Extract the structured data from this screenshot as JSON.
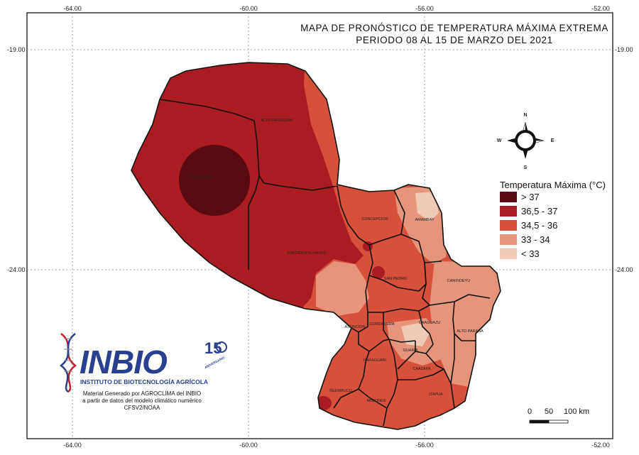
{
  "title": {
    "line1": "MAPA DE PRONÓSTICO DE TEMPERATURA MÁXIMA EXTREMA",
    "line2": "PERIODO  08 AL 15 DE MARZO DEL 2021"
  },
  "coords": {
    "lon": [
      "-64.00",
      "-60.00",
      "-56.00",
      "-52.00"
    ],
    "lat": [
      "-19.00",
      "-24.00"
    ]
  },
  "departments": {
    "boqueron": "BOQUERON",
    "alto_paraguay": "ALTO PARAGUAY",
    "presidente_hayes": "PRESIDENTE HAYES",
    "concepcion": "CONCEPCION",
    "amambay": "AMAMBAY",
    "san_pedro": "SAN PEDRO",
    "canindeyu": "CANINDEYU",
    "cordillera": "CORDILLERA",
    "asuncion": "ASUNCION",
    "caaguazu": "CAAGUAZU",
    "alto_parana": "ALTO PARANA",
    "guaira": "GUAIRA",
    "paraguari": "PARAGUARI",
    "caazapa": "CAAZAPA",
    "neembucu": "ÑEEMBUCU",
    "misiones": "MISIONES",
    "itapua": "ITAPUA"
  },
  "compass": {
    "n": "N",
    "s": "S",
    "e": "E",
    "w": "W"
  },
  "legend": {
    "title": "Temperatura Máxima (°C)",
    "items": [
      {
        "label": "> 37",
        "color": "#5a0a12"
      },
      {
        "label": "36,5 - 37",
        "color": "#a81c22"
      },
      {
        "label": "34,5 - 36",
        "color": "#d6513a"
      },
      {
        "label": "33 - 34",
        "color": "#e6957a"
      },
      {
        "label": "< 33",
        "color": "#f1cab7"
      }
    ]
  },
  "logo": {
    "name": "INBIO",
    "subtitle": "INSTITUTO DE BIOTECNOLOGÍA AGRÍCOLA",
    "anniversary": "15",
    "anniversary_text": "ANIVERSARIO"
  },
  "credit": {
    "line1": "Material Generado por AGROCLIMA del INBIO",
    "line2": "a partir de datos del modelo climático numérico",
    "line3": "CFSV2/NOAA"
  },
  "scale_bar": {
    "labels": [
      "0",
      "50",
      "100 km"
    ]
  }
}
